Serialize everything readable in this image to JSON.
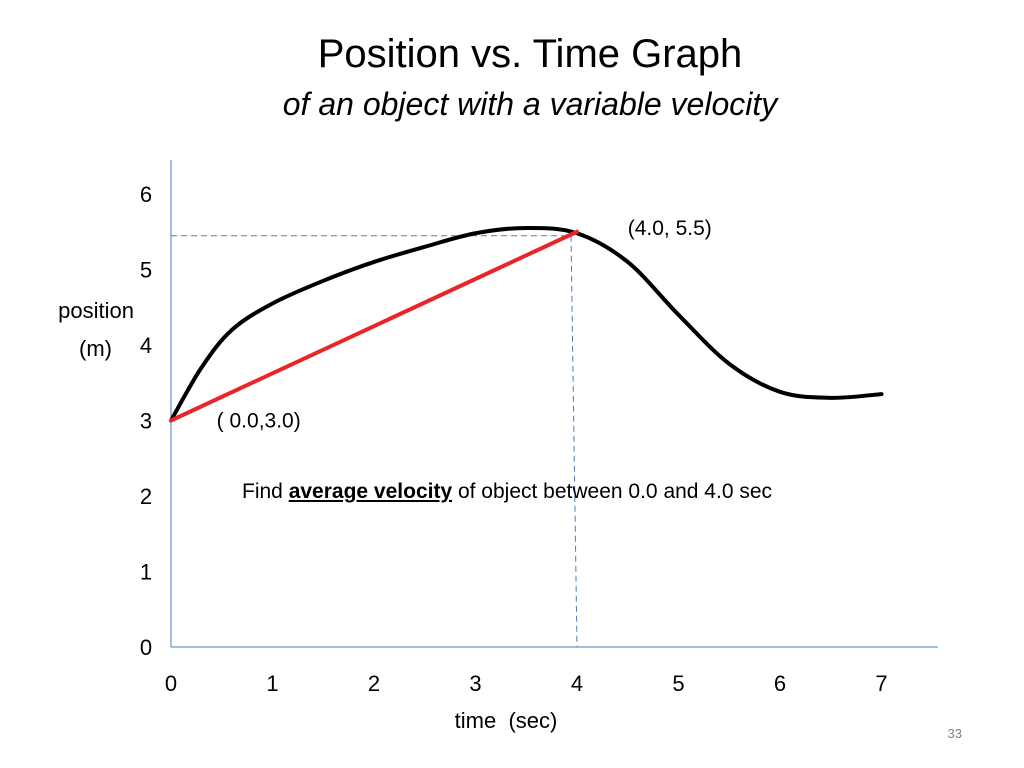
{
  "slide": {
    "title": "Position vs. Time Graph",
    "subtitle": "of an object with a variable velocity",
    "note_prefix": "Find ",
    "note_emphasis": "average velocity",
    "note_suffix": " of object between 0.0 and 4.0 sec",
    "page_number": "33"
  },
  "chart_data": {
    "type": "line",
    "xlabel": "time  (sec)",
    "ylabel_line1": "position",
    "ylabel_line2": "(m)",
    "xlim": [
      0,
      7.5
    ],
    "ylim": [
      0,
      6.3
    ],
    "x_ticks": [
      0,
      1,
      2,
      3,
      4,
      5,
      6,
      7
    ],
    "y_ticks": [
      0,
      1,
      2,
      3,
      4,
      5,
      6
    ],
    "x_tick_labels": [
      "0",
      "1",
      "2",
      "3",
      "4",
      "5",
      "6",
      "7"
    ],
    "y_tick_labels": [
      "0",
      "1",
      "2",
      "3",
      "4",
      "5",
      "6"
    ],
    "series": [
      {
        "color": "#000000",
        "x": [
          0.0,
          0.3,
          0.6,
          1.0,
          1.5,
          2.0,
          2.5,
          3.0,
          3.5,
          4.0,
          4.5,
          5.0,
          5.5,
          6.0,
          6.5,
          7.0
        ],
        "y": [
          3.0,
          3.7,
          4.2,
          4.55,
          4.85,
          5.1,
          5.3,
          5.48,
          5.55,
          5.48,
          5.1,
          4.4,
          3.75,
          3.38,
          3.3,
          3.35
        ]
      },
      {
        "color": "#e8262a",
        "x": [
          0.0,
          4.0
        ],
        "y": [
          3.0,
          5.5
        ]
      }
    ],
    "guides": {
      "color": "#4a7ebb",
      "x": 4.0,
      "y": 5.5
    },
    "annotations": [
      {
        "text": "(4.0, 5.5)",
        "x": 4.5,
        "y": 5.55
      },
      {
        "text": "( 0.0,3.0)",
        "x": 0.45,
        "y": 3.0
      }
    ],
    "axis_color": "#4a7ebb"
  }
}
